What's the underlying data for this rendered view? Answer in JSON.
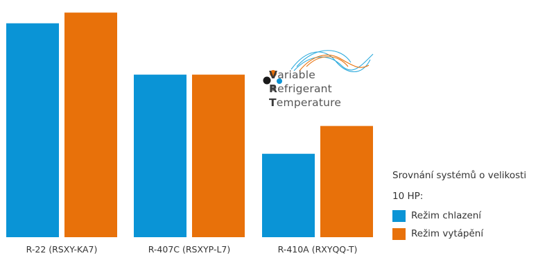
{
  "chart_data": {
    "type": "bar",
    "categories": [
      "R-22 (RSXY-KA7)",
      "R-407C (RSXYP-L7)",
      "R-410A (RXYQQ-T)"
    ],
    "series": [
      {
        "name": "Režim chlazení",
        "color": "#0a94d6",
        "values": [
          100,
          76,
          39
        ]
      },
      {
        "name": "Režim vytápění",
        "color": "#e8710a",
        "values": [
          105,
          76,
          52
        ]
      }
    ],
    "ylim": [
      0,
      107
    ],
    "grid": false,
    "legend_position": "right",
    "title": "",
    "xlabel": "",
    "ylabel": ""
  },
  "legend": {
    "title_line1": "Srovnání systémů o velikosti",
    "title_line2": "10 HP:",
    "items": [
      {
        "label": "Režim chlazení",
        "color": "#0a94d6"
      },
      {
        "label": "Režim vytápění",
        "color": "#e8710a"
      }
    ]
  },
  "logo": {
    "line1_cap": "V",
    "line1_rest": "ariable",
    "line2_cap": "R",
    "line2_rest": "efrigerant",
    "line3_cap": "T",
    "line3_rest": "emperature",
    "colors": {
      "orange": "#e8710a",
      "blue": "#0a94d6",
      "black": "#1a1a1a",
      "gray": "#8a8a8a"
    }
  }
}
